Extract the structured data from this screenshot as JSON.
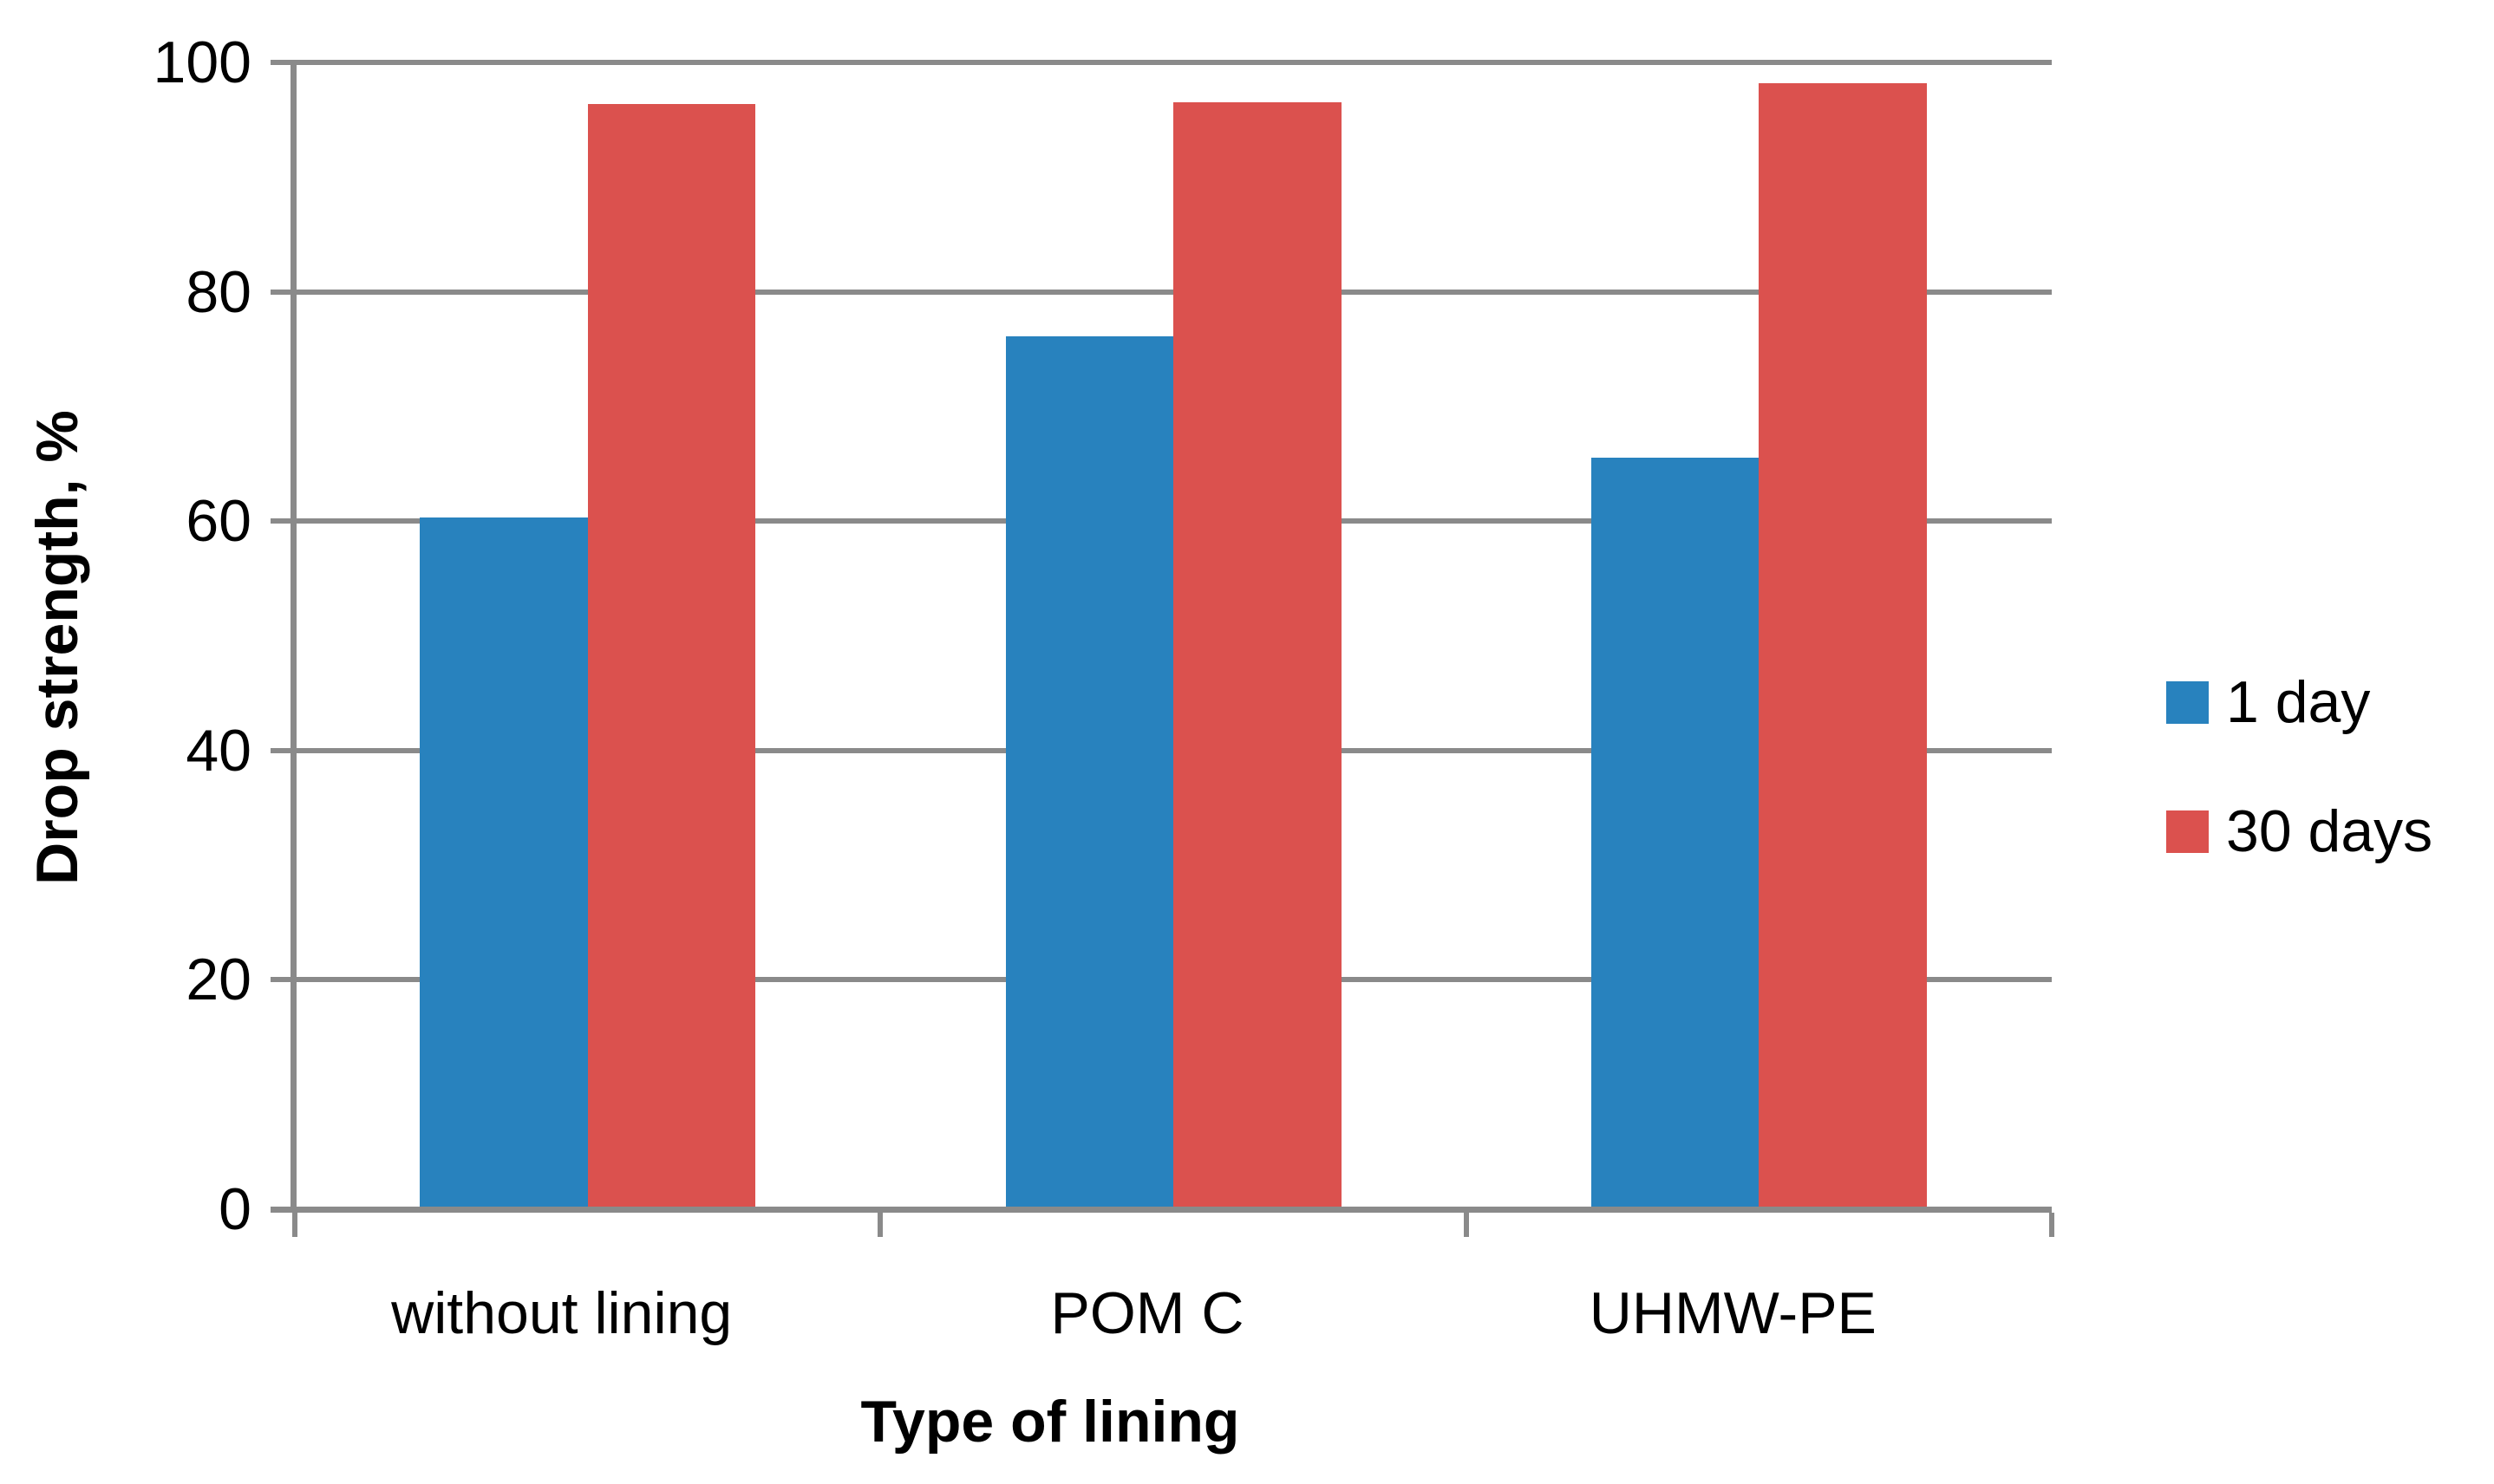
{
  "chart_data": {
    "type": "bar",
    "categories": [
      "without lining",
      "POM C",
      "UHMW-PE"
    ],
    "series": [
      {
        "name": "1 day",
        "color": "#2882BE",
        "values": [
          60.3,
          76.1,
          65.5
        ]
      },
      {
        "name": "30 days",
        "color": "#DB514E",
        "values": [
          96.4,
          96.5,
          98.2
        ]
      }
    ],
    "xlabel": "Type of lining",
    "ylabel": "Drop strength, %",
    "ylim": [
      0,
      100
    ],
    "yticks": [
      0,
      20,
      40,
      60,
      80,
      100
    ],
    "grid": "horizontal",
    "legend_position": "right",
    "axis_color": "#8A8A8A",
    "text_color": "#000000",
    "background_color": "#FFFFFF"
  }
}
